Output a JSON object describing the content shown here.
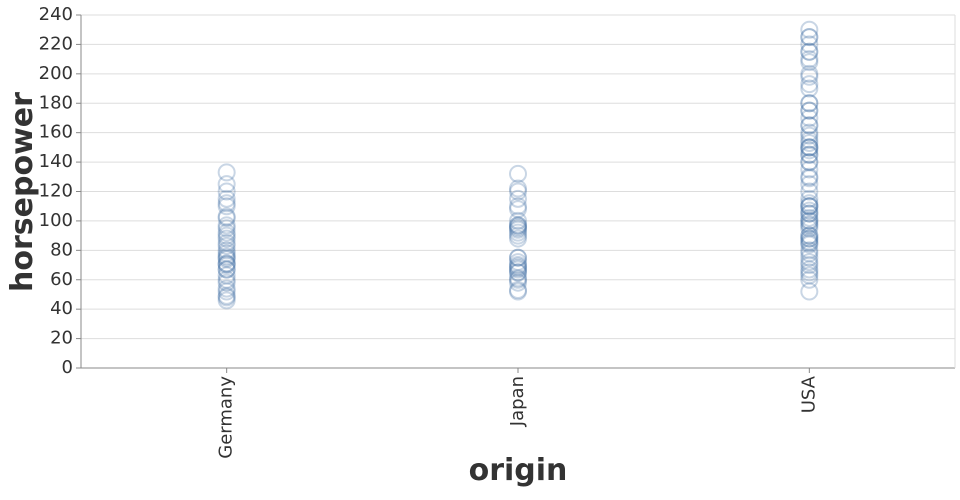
{
  "chart_data": {
    "type": "strip",
    "x_label": "origin",
    "y_label": "horsepower",
    "categories": [
      "Germany",
      "Japan",
      "USA"
    ],
    "values": [
      [
        46,
        48,
        49,
        52,
        54,
        58,
        60,
        63,
        67,
        67,
        70,
        71,
        71,
        74,
        75,
        76,
        78,
        80,
        83,
        85,
        88,
        90,
        92,
        95,
        97,
        102,
        103,
        110,
        112,
        115,
        120,
        125,
        133
      ],
      [
        52,
        53,
        58,
        60,
        61,
        65,
        65,
        67,
        68,
        69,
        70,
        72,
        75,
        75,
        88,
        90,
        92,
        94,
        95,
        96,
        97,
        97,
        100,
        108,
        110,
        115,
        120,
        122,
        132
      ],
      [
        52,
        60,
        63,
        65,
        67,
        70,
        72,
        75,
        78,
        80,
        84,
        85,
        86,
        88,
        88,
        90,
        90,
        95,
        97,
        98,
        100,
        100,
        102,
        105,
        105,
        107,
        110,
        110,
        110,
        112,
        115,
        120,
        125,
        129,
        130,
        135,
        140,
        140,
        145,
        145,
        148,
        150,
        150,
        150,
        153,
        155,
        158,
        160,
        165,
        165,
        170,
        175,
        175,
        180,
        180,
        190,
        193,
        198,
        200,
        208,
        210,
        215,
        215,
        220,
        225,
        225,
        230
      ]
    ],
    "color": "#4c78a8",
    "ylim": [
      0,
      240
    ],
    "yticks": [
      0,
      20,
      40,
      60,
      80,
      100,
      120,
      140,
      160,
      180,
      200,
      220,
      240
    ],
    "grid": true
  }
}
